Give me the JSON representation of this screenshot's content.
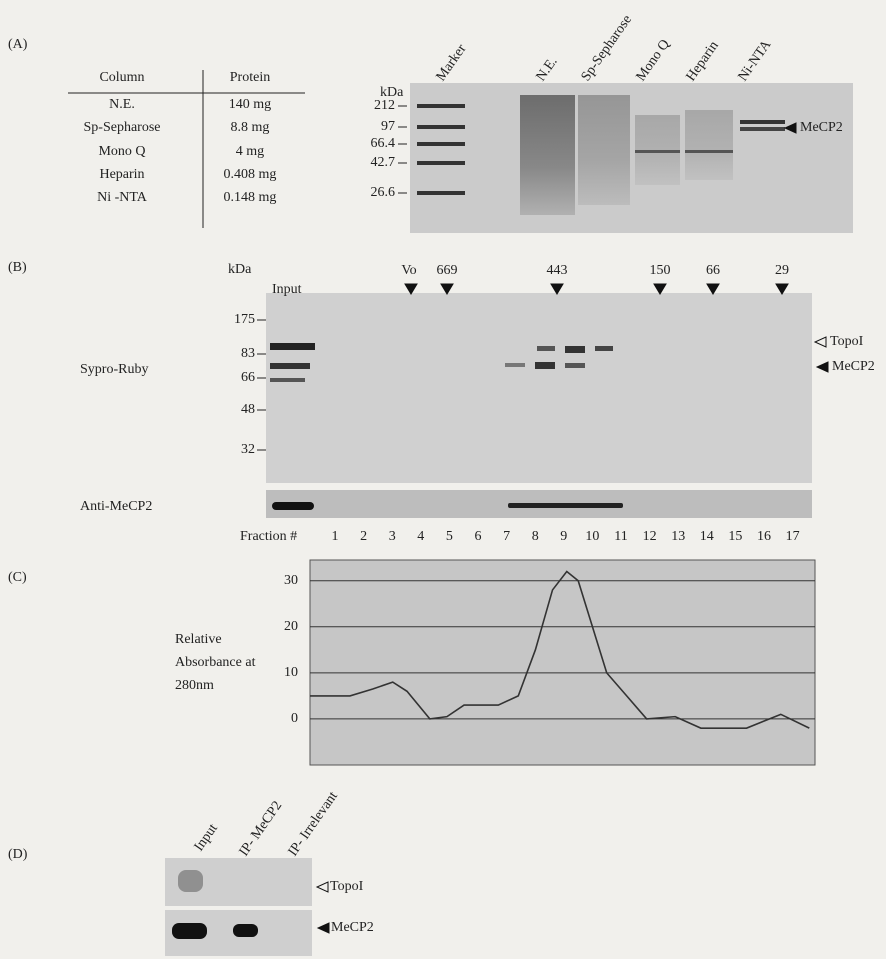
{
  "panel_a": {
    "label": "(A)",
    "table": {
      "header": [
        "Column",
        "Protein"
      ],
      "rows": [
        [
          "N.E.",
          "140 mg"
        ],
        [
          "Sp-Sepharose",
          "8.8 mg"
        ],
        [
          "Mono Q",
          "4 mg"
        ],
        [
          "Heparin",
          "0.408 mg"
        ],
        [
          "Ni -NTA",
          "0.148 mg"
        ]
      ]
    },
    "gel": {
      "unit": "kDa",
      "markers": [
        "212",
        "97",
        "66.4",
        "42.7",
        "26.6"
      ],
      "lanes": [
        "Marker",
        "N.E.",
        "Sp-Sepharose",
        "Mono Q",
        "Heparin",
        "Ni-NTA"
      ],
      "arrow": "MeCP2"
    }
  },
  "panel_b": {
    "label": "(B)",
    "unit": "kDa",
    "input": "Input",
    "size_markers": [
      "Vo",
      "669",
      "443",
      "150",
      "66",
      "29"
    ],
    "mw_markers": [
      "175",
      "83",
      "66",
      "48",
      "32"
    ],
    "stain": "Sypro-Ruby",
    "blot": "Anti-MeCP2",
    "arrows": [
      "TopoI",
      "MeCP2"
    ],
    "fraction_label": "Fraction #",
    "fractions": [
      "1",
      "2",
      "3",
      "4",
      "5",
      "6",
      "7",
      "8",
      "9",
      "10",
      "11",
      "12",
      "13",
      "14",
      "15",
      "16",
      "17"
    ]
  },
  "chart_data": {
    "type": "line",
    "label": "(C)",
    "y_label": [
      "Relative",
      "Absorbance at",
      "280nm"
    ],
    "x": [
      0.1,
      1.5,
      2.3,
      3.0,
      3.5,
      4.3,
      4.9,
      5.5,
      6.7,
      7.4,
      8.0,
      8.6,
      9.1,
      9.5,
      10.0,
      10.5,
      11.2,
      11.9,
      12.9,
      13.8,
      15.4,
      16.6,
      17.6
    ],
    "y": [
      5,
      5,
      6.5,
      8,
      6,
      0,
      0.5,
      3,
      3,
      5,
      15,
      28,
      32,
      30,
      20,
      10,
      5,
      0,
      0.5,
      -2,
      -2,
      1,
      -2
    ],
    "xlim": [
      0.1,
      17.8
    ],
    "ylim": [
      -10,
      34.5
    ],
    "yticks": [
      0,
      10,
      20,
      30
    ],
    "grid": true,
    "color": "#333333"
  },
  "panel_d": {
    "label": "(D)",
    "lanes": [
      "Input",
      "IP- MeCP2",
      "IP- Irrelevant"
    ],
    "arrows": [
      "TopoI",
      "MeCP2"
    ]
  }
}
